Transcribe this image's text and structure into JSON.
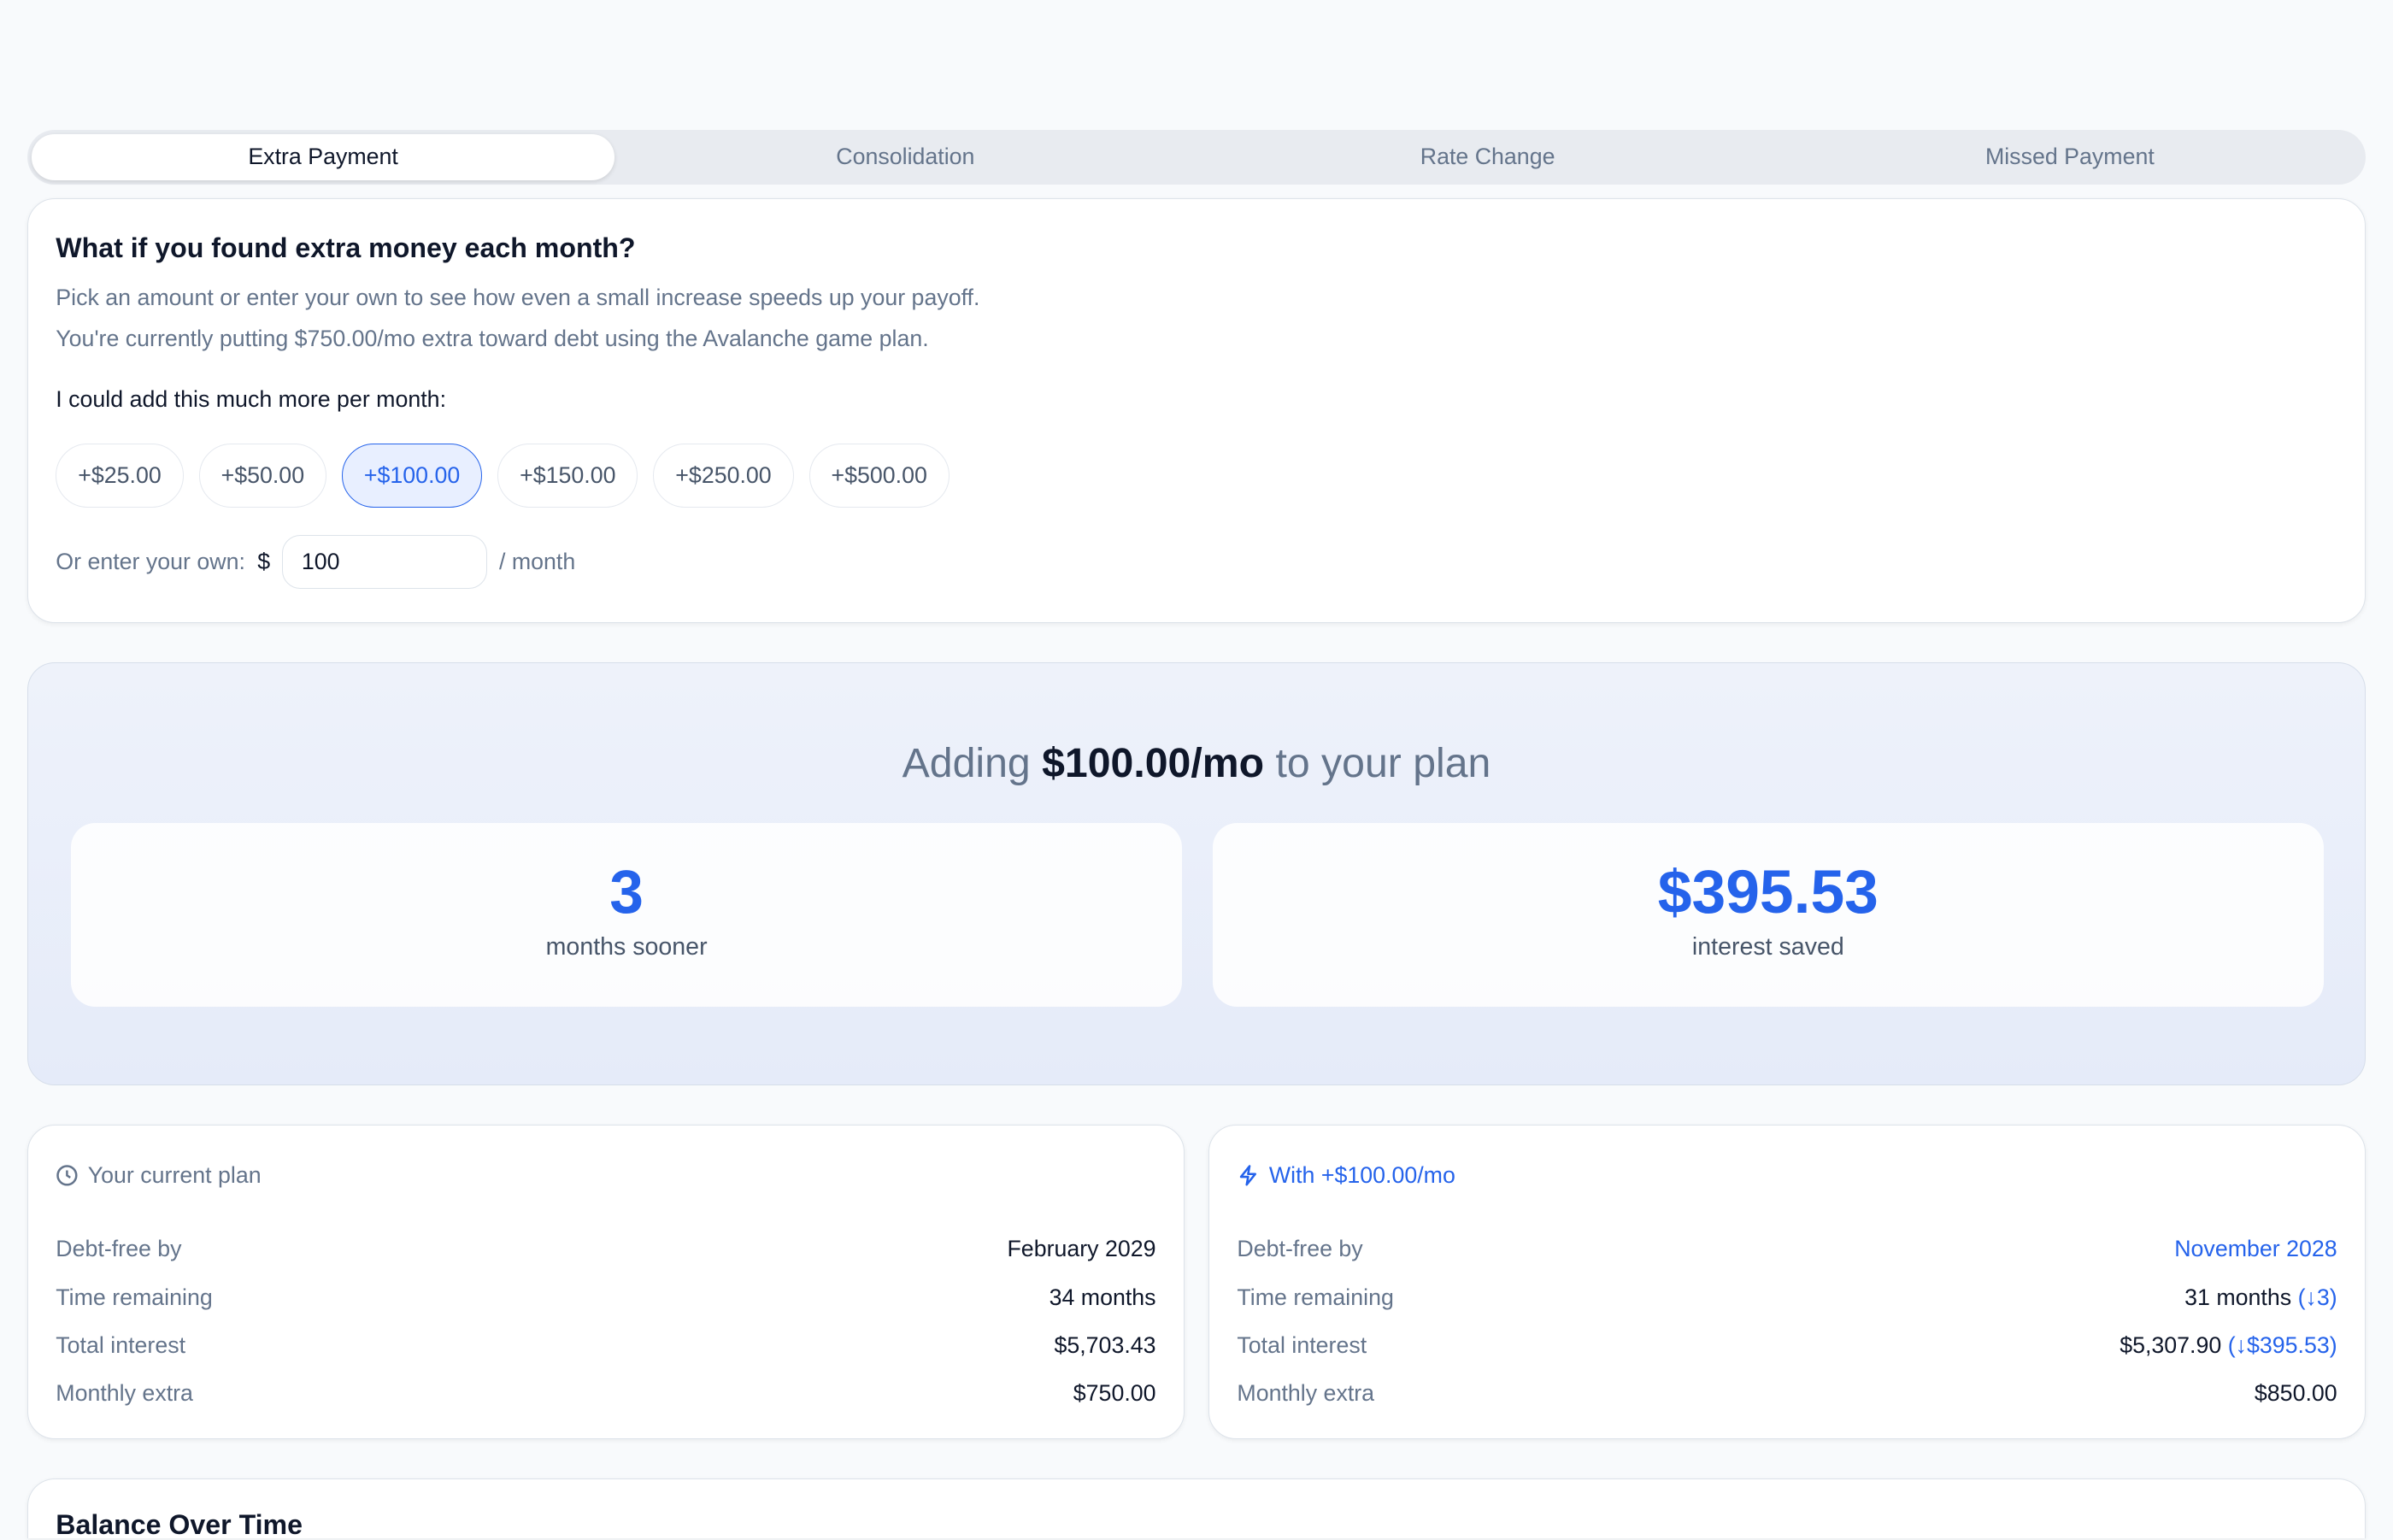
{
  "tabs": [
    "Extra Payment",
    "Consolidation",
    "Rate Change",
    "Missed Payment"
  ],
  "active_tab": "Extra Payment",
  "intro": {
    "title": "What if you found extra money each month?",
    "line1": "Pick an amount or enter your own to see how even a small increase speeds up your payoff.",
    "line2": "You're currently putting $750.00/mo extra toward debt using the Avalanche game plan.",
    "prompt": "I could add this much more per month:",
    "chips": [
      "+$25.00",
      "+$50.00",
      "+$100.00",
      "+$150.00",
      "+$250.00",
      "+$500.00"
    ],
    "selected_chip": "+$100.00",
    "own_label": "Or enter your own:",
    "currency": "$",
    "own_value": "100",
    "per": "/ month"
  },
  "hero": {
    "pre": "Adding",
    "amount": "$100.00/mo",
    "post": "to your plan",
    "stat1_value": "3",
    "stat1_label": "months sooner",
    "stat2_value": "$395.53",
    "stat2_label": "interest saved"
  },
  "current": {
    "title": "Your current plan",
    "icon": "clock-icon",
    "rows": [
      {
        "k": "Debt-free by",
        "v": "February 2029"
      },
      {
        "k": "Time remaining",
        "v": "34 months"
      },
      {
        "k": "Total interest",
        "v": "$5,703.43"
      },
      {
        "k": "Monthly extra",
        "v": "$750.00"
      }
    ]
  },
  "with": {
    "title": "With +$100.00/mo",
    "icon": "lightning-icon",
    "rows": [
      {
        "k": "Debt-free by",
        "v": "November 2028"
      },
      {
        "k": "Time remaining",
        "v": "31 months",
        "d": "(↓3)"
      },
      {
        "k": "Total interest",
        "v": "$5,307.90",
        "d": "(↓$395.53)"
      },
      {
        "k": "Monthly extra",
        "v": "$850.00"
      }
    ]
  },
  "balance": {
    "title": "Balance Over Time"
  },
  "colors": {
    "accent": "#2563eb",
    "background": "#f8fafc"
  }
}
